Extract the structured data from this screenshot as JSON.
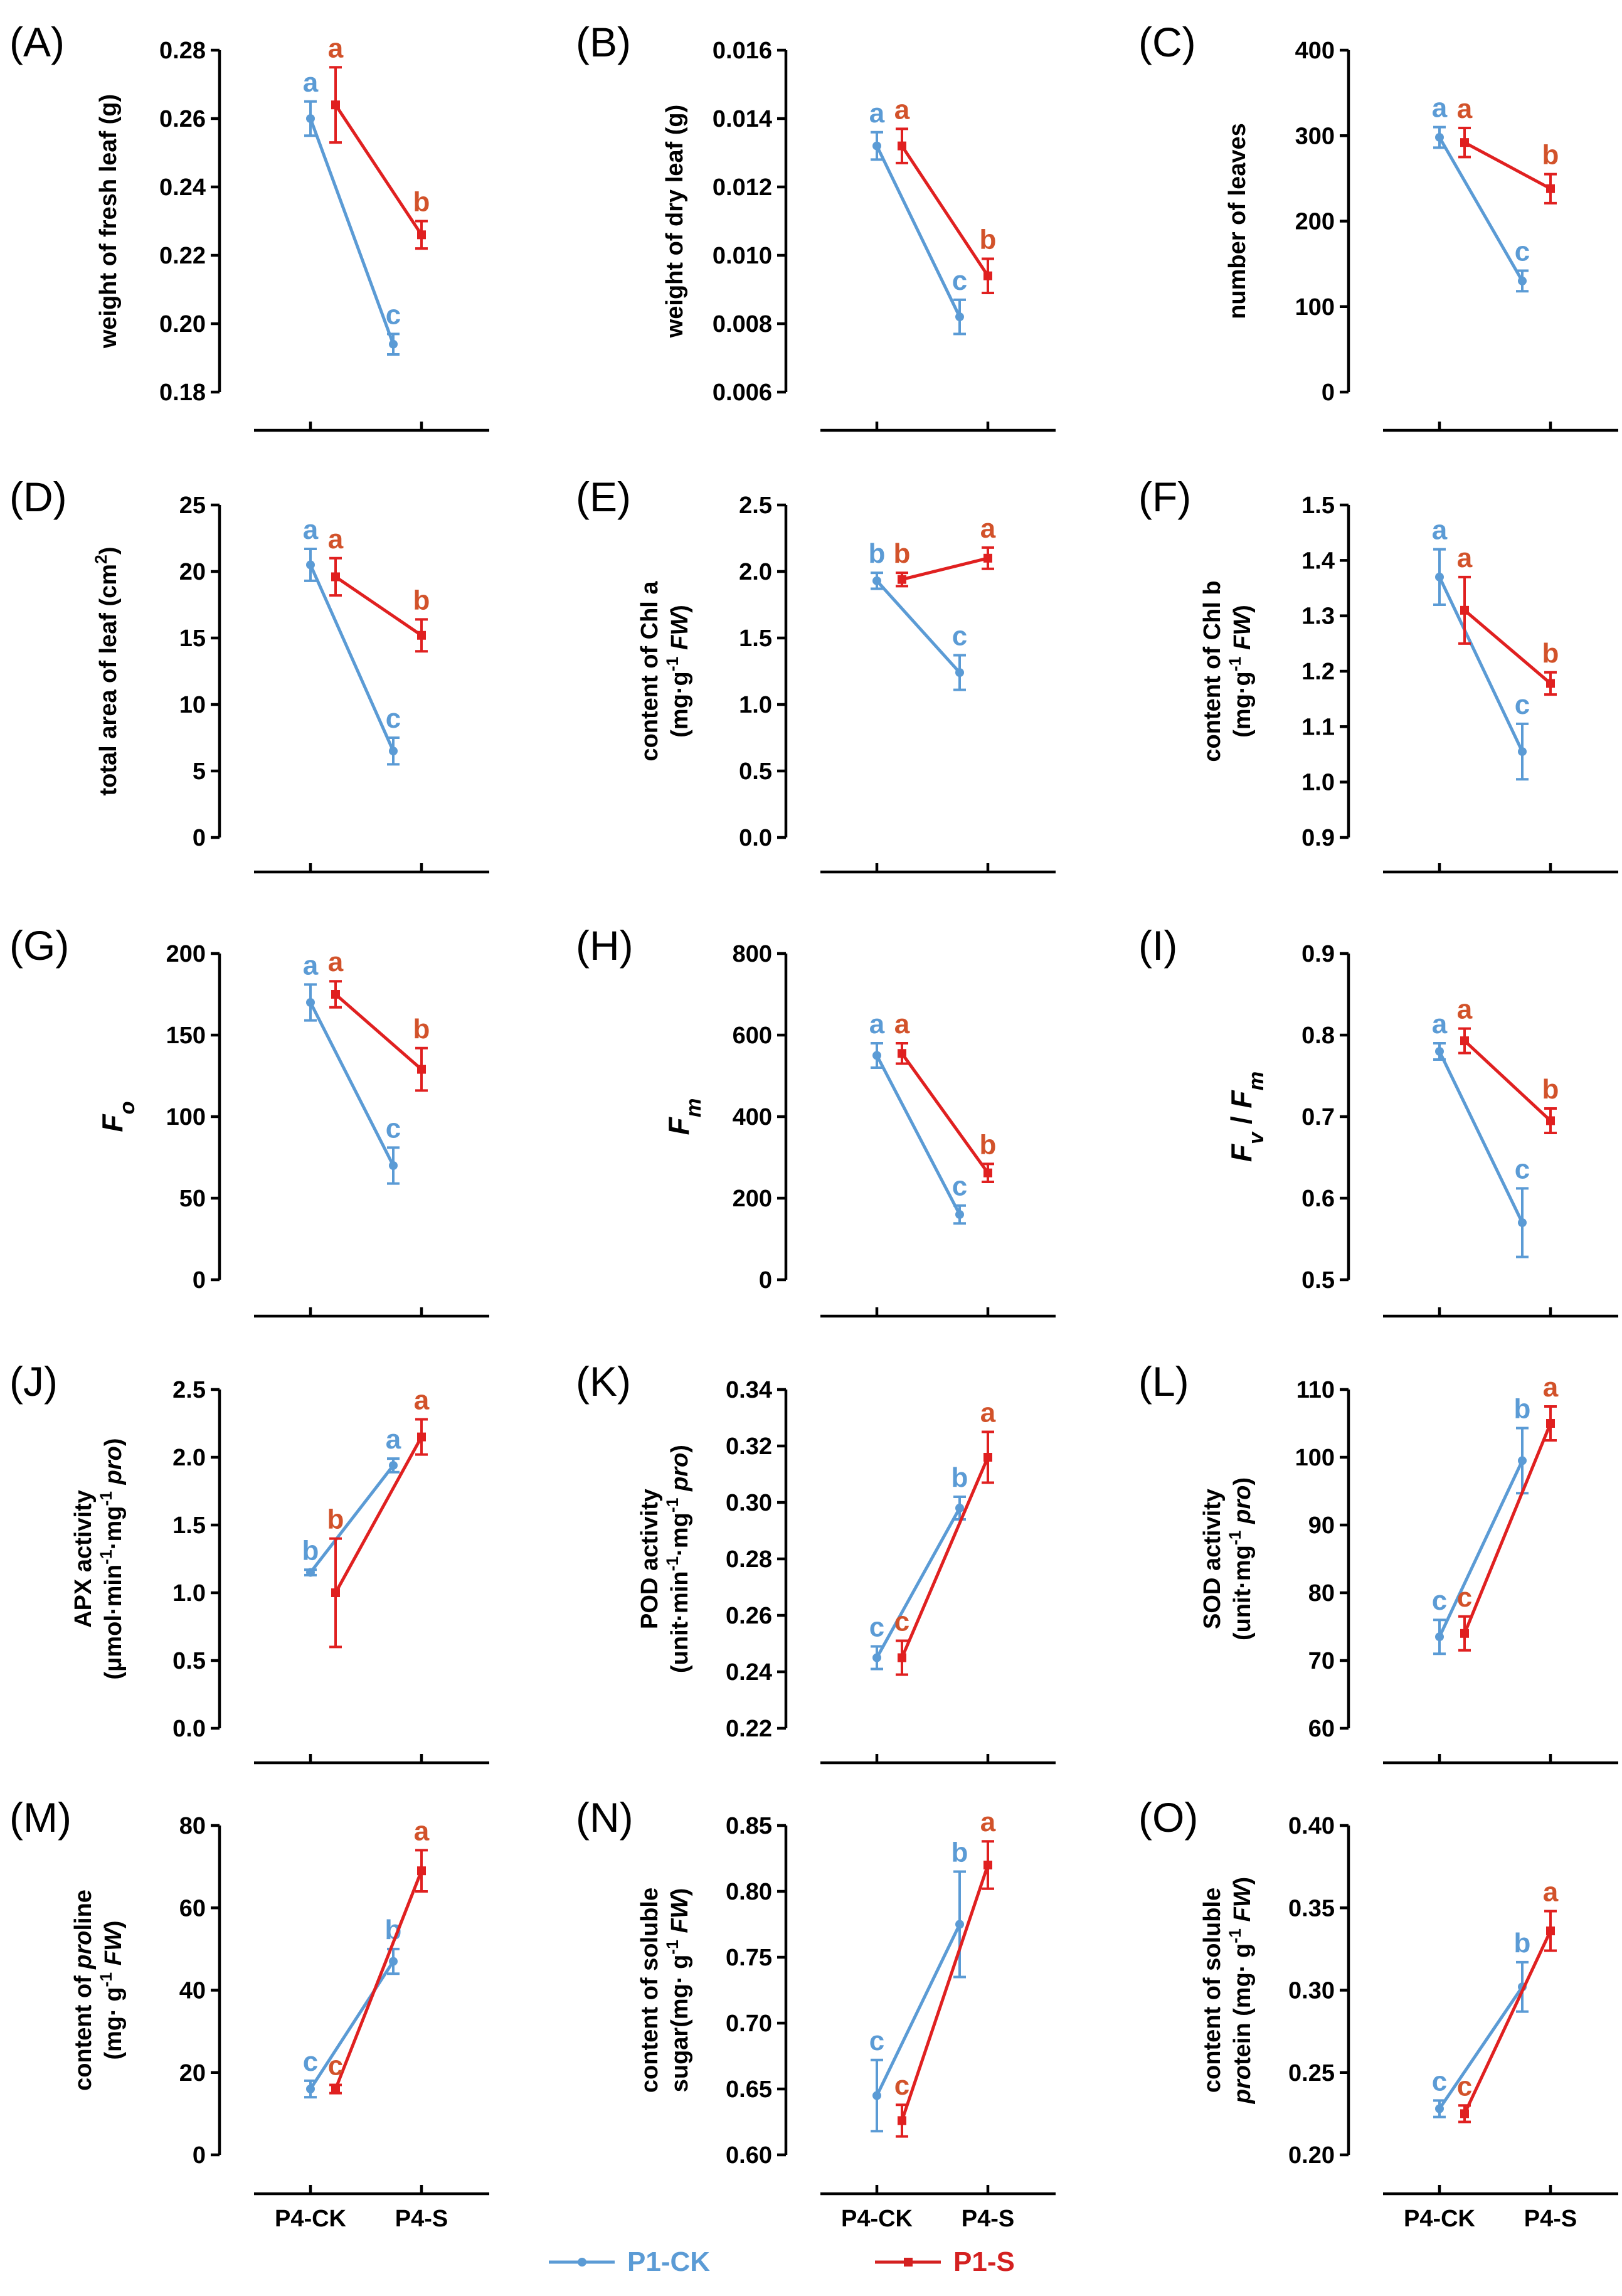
{
  "colors": {
    "P1-CK": "#5b9bd5",
    "P1-S": "#e02020",
    "sig_P1-S": "#d2522a"
  },
  "x_categories": [
    "P4-CK",
    "P4-S"
  ],
  "legend": [
    {
      "name": "P1-CK",
      "color": "#5b9bd5"
    },
    {
      "name": "P1-S",
      "color": "#d42020"
    }
  ],
  "chart_data": [
    {
      "panel": "(A)",
      "type": "line",
      "ylabel": [
        "weight of fresh leaf (g)"
      ],
      "ylim": [
        0.18,
        0.28
      ],
      "yticks": [
        "0.18",
        "0.20",
        "0.22",
        "0.24",
        "0.26",
        "0.28"
      ],
      "tick_values": [
        0.18,
        0.2,
        0.22,
        0.24,
        0.26,
        0.28
      ],
      "categories": [
        "P4-CK",
        "P4-S"
      ],
      "series": [
        {
          "name": "P1-CK",
          "values": [
            0.26,
            0.194
          ],
          "errors": [
            0.005,
            0.003
          ],
          "letters": [
            "a",
            "c"
          ]
        },
        {
          "name": "P1-S",
          "values": [
            0.264,
            0.226
          ],
          "errors": [
            0.011,
            0.004
          ],
          "letters": [
            "a",
            "b"
          ]
        }
      ]
    },
    {
      "panel": "(B)",
      "type": "line",
      "ylabel": [
        "weight of dry leaf (g)"
      ],
      "ylim": [
        0.006,
        0.016
      ],
      "yticks": [
        "0.006",
        "0.008",
        "0.010",
        "0.012",
        "0.014",
        "0.016"
      ],
      "tick_values": [
        0.006,
        0.008,
        0.01,
        0.012,
        0.014,
        0.016
      ],
      "categories": [
        "P4-CK",
        "P4-S"
      ],
      "series": [
        {
          "name": "P1-CK",
          "values": [
            0.0132,
            0.0082
          ],
          "errors": [
            0.0004,
            0.0005
          ],
          "letters": [
            "a",
            "c"
          ]
        },
        {
          "name": "P1-S",
          "values": [
            0.0132,
            0.0094
          ],
          "errors": [
            0.0005,
            0.0005
          ],
          "letters": [
            "a",
            "b"
          ]
        }
      ]
    },
    {
      "panel": "(C)",
      "type": "line",
      "ylabel": [
        "number of leaves"
      ],
      "ylim": [
        0,
        400
      ],
      "yticks": [
        "0",
        "100",
        "200",
        "300",
        "400"
      ],
      "tick_values": [
        0,
        100,
        200,
        300,
        400
      ],
      "categories": [
        "P4-CK",
        "P4-S"
      ],
      "series": [
        {
          "name": "P1-CK",
          "values": [
            298,
            130
          ],
          "errors": [
            12,
            12
          ],
          "letters": [
            "a",
            "c"
          ]
        },
        {
          "name": "P1-S",
          "values": [
            292,
            238
          ],
          "errors": [
            17,
            17
          ],
          "letters": [
            "a",
            "b"
          ]
        }
      ]
    },
    {
      "panel": "(D)",
      "type": "line",
      "ylabel": [
        "total area of leaf (cm²)"
      ],
      "ylim": [
        0,
        25
      ],
      "yticks": [
        "0",
        "5",
        "10",
        "15",
        "20",
        "25"
      ],
      "tick_values": [
        0,
        5,
        10,
        15,
        20,
        25
      ],
      "categories": [
        "P4-CK",
        "P4-S"
      ],
      "series": [
        {
          "name": "P1-CK",
          "values": [
            20.5,
            6.5
          ],
          "errors": [
            1.2,
            1.0
          ],
          "letters": [
            "a",
            "c"
          ]
        },
        {
          "name": "P1-S",
          "values": [
            19.6,
            15.2
          ],
          "errors": [
            1.4,
            1.2
          ],
          "letters": [
            "a",
            "b"
          ]
        }
      ]
    },
    {
      "panel": "(E)",
      "type": "line",
      "ylabel": [
        "content of Chl a",
        "(mg·g⁻¹ FW)"
      ],
      "ylim": [
        0,
        2.5
      ],
      "yticks": [
        "0.0",
        "0.5",
        "1.0",
        "1.5",
        "2.0",
        "2.5"
      ],
      "tick_values": [
        0,
        0.5,
        1.0,
        1.5,
        2.0,
        2.5
      ],
      "categories": [
        "P4-CK",
        "P4-S"
      ],
      "series": [
        {
          "name": "P1-CK",
          "values": [
            1.93,
            1.24
          ],
          "errors": [
            0.06,
            0.13
          ],
          "letters": [
            "b",
            "c"
          ]
        },
        {
          "name": "P1-S",
          "values": [
            1.94,
            2.1
          ],
          "errors": [
            0.05,
            0.08
          ],
          "letters": [
            "b",
            "a"
          ]
        }
      ]
    },
    {
      "panel": "(F)",
      "type": "line",
      "ylabel": [
        "content of Chl b",
        "(mg·g⁻¹ FW)"
      ],
      "ylim": [
        0.9,
        1.5
      ],
      "yticks": [
        "0.9",
        "1.0",
        "1.1",
        "1.2",
        "1.3",
        "1.4",
        "1.5"
      ],
      "tick_values": [
        0.9,
        1.0,
        1.1,
        1.2,
        1.3,
        1.4,
        1.5
      ],
      "categories": [
        "P4-CK",
        "P4-S"
      ],
      "series": [
        {
          "name": "P1-CK",
          "values": [
            1.37,
            1.055
          ],
          "errors": [
            0.05,
            0.05
          ],
          "letters": [
            "a",
            "c"
          ]
        },
        {
          "name": "P1-S",
          "values": [
            1.31,
            1.178
          ],
          "errors": [
            0.06,
            0.02
          ],
          "letters": [
            "a",
            "b"
          ]
        }
      ]
    },
    {
      "panel": "(G)",
      "type": "line",
      "ylabel": [
        "Fo"
      ],
      "ylim": [
        0,
        200
      ],
      "yticks": [
        "0",
        "50",
        "100",
        "150",
        "200"
      ],
      "tick_values": [
        0,
        50,
        100,
        150,
        200
      ],
      "categories": [
        "P4-CK",
        "P4-S"
      ],
      "series": [
        {
          "name": "P1-CK",
          "values": [
            170,
            70
          ],
          "errors": [
            11,
            11
          ],
          "letters": [
            "a",
            "c"
          ]
        },
        {
          "name": "P1-S",
          "values": [
            175,
            129
          ],
          "errors": [
            8,
            13
          ],
          "letters": [
            "a",
            "b"
          ]
        }
      ]
    },
    {
      "panel": "(H)",
      "type": "line",
      "ylabel": [
        "Fm"
      ],
      "ylim": [
        0,
        800
      ],
      "yticks": [
        "0",
        "200",
        "400",
        "600",
        "800"
      ],
      "tick_values": [
        0,
        200,
        400,
        600,
        800
      ],
      "categories": [
        "P4-CK",
        "P4-S"
      ],
      "series": [
        {
          "name": "P1-CK",
          "values": [
            550,
            160
          ],
          "errors": [
            30,
            22
          ],
          "letters": [
            "a",
            "c"
          ]
        },
        {
          "name": "P1-S",
          "values": [
            555,
            262
          ],
          "errors": [
            25,
            22
          ],
          "letters": [
            "a",
            "b"
          ]
        }
      ]
    },
    {
      "panel": "(I)",
      "type": "line",
      "ylabel": [
        "Fv / Fm"
      ],
      "ylim": [
        0.5,
        0.9
      ],
      "yticks": [
        "0.5",
        "0.6",
        "0.7",
        "0.8",
        "0.9"
      ],
      "tick_values": [
        0.5,
        0.6,
        0.7,
        0.8,
        0.9
      ],
      "categories": [
        "P4-CK",
        "P4-S"
      ],
      "series": [
        {
          "name": "P1-CK",
          "values": [
            0.78,
            0.57
          ],
          "errors": [
            0.01,
            0.042
          ],
          "letters": [
            "a",
            "c"
          ]
        },
        {
          "name": "P1-S",
          "values": [
            0.793,
            0.695
          ],
          "errors": [
            0.015,
            0.015
          ],
          "letters": [
            "a",
            "b"
          ]
        }
      ]
    },
    {
      "panel": "(J)",
      "type": "line",
      "ylabel": [
        "APX activity",
        "(μmol·min⁻¹·mg⁻¹ pro)"
      ],
      "ylim": [
        0,
        2.5
      ],
      "yticks": [
        "0.0",
        "0.5",
        "1.0",
        "1.5",
        "2.0",
        "2.5"
      ],
      "tick_values": [
        0,
        0.5,
        1.0,
        1.5,
        2.0,
        2.5
      ],
      "categories": [
        "P4-CK",
        "P4-S"
      ],
      "series": [
        {
          "name": "P1-CK",
          "values": [
            1.15,
            1.94
          ],
          "errors": [
            0.02,
            0.05
          ],
          "letters": [
            "b",
            "a"
          ]
        },
        {
          "name": "P1-S",
          "values": [
            1.0,
            2.15
          ],
          "errors": [
            0.4,
            0.13
          ],
          "letters": [
            "b",
            "a"
          ]
        }
      ]
    },
    {
      "panel": "(K)",
      "type": "line",
      "ylabel": [
        "POD activity",
        "(unit·min⁻¹·mg⁻¹ pro)"
      ],
      "ylim": [
        0.22,
        0.34
      ],
      "yticks": [
        "0.22",
        "0.24",
        "0.26",
        "0.28",
        "0.30",
        "0.32",
        "0.34"
      ],
      "tick_values": [
        0.22,
        0.24,
        0.26,
        0.28,
        0.3,
        0.32,
        0.34
      ],
      "categories": [
        "P4-CK",
        "P4-S"
      ],
      "series": [
        {
          "name": "P1-CK",
          "values": [
            0.245,
            0.298
          ],
          "errors": [
            0.004,
            0.004
          ],
          "letters": [
            "c",
            "b"
          ]
        },
        {
          "name": "P1-S",
          "values": [
            0.245,
            0.316
          ],
          "errors": [
            0.006,
            0.009
          ],
          "letters": [
            "c",
            "a"
          ]
        }
      ]
    },
    {
      "panel": "(L)",
      "type": "line",
      "ylabel": [
        "SOD activity",
        "(unit·mg⁻¹ pro)"
      ],
      "ylim": [
        60,
        110
      ],
      "yticks": [
        "60",
        "70",
        "80",
        "90",
        "100",
        "110"
      ],
      "tick_values": [
        60,
        70,
        80,
        90,
        100,
        110
      ],
      "categories": [
        "P4-CK",
        "P4-S"
      ],
      "series": [
        {
          "name": "P1-CK",
          "values": [
            73.5,
            99.5
          ],
          "errors": [
            2.5,
            4.8
          ],
          "letters": [
            "c",
            "b"
          ]
        },
        {
          "name": "P1-S",
          "values": [
            74.0,
            105.0
          ],
          "errors": [
            2.5,
            2.5
          ],
          "letters": [
            "c",
            "a"
          ]
        }
      ]
    },
    {
      "panel": "(M)",
      "type": "line",
      "ylabel": [
        "content of proline",
        "(mg· g⁻¹ FW)"
      ],
      "ylim": [
        0,
        80
      ],
      "yticks": [
        "0",
        "20",
        "40",
        "60",
        "80"
      ],
      "tick_values": [
        0,
        20,
        40,
        60,
        80
      ],
      "categories": [
        "P4-CK",
        "P4-S"
      ],
      "series": [
        {
          "name": "P1-CK",
          "values": [
            16,
            47
          ],
          "errors": [
            2,
            3
          ],
          "letters": [
            "c",
            "b"
          ]
        },
        {
          "name": "P1-S",
          "values": [
            16,
            69
          ],
          "errors": [
            1,
            5
          ],
          "letters": [
            "c",
            "a"
          ]
        }
      ]
    },
    {
      "panel": "(N)",
      "type": "line",
      "ylabel": [
        "content of soluble",
        "sugar(mg· g⁻¹ FW)"
      ],
      "ylim": [
        0.6,
        0.85
      ],
      "yticks": [
        "0.60",
        "0.65",
        "0.70",
        "0.75",
        "0.80",
        "0.85"
      ],
      "tick_values": [
        0.6,
        0.65,
        0.7,
        0.75,
        0.8,
        0.85
      ],
      "categories": [
        "P4-CK",
        "P4-S"
      ],
      "series": [
        {
          "name": "P1-CK",
          "values": [
            0.645,
            0.775
          ],
          "errors": [
            0.027,
            0.04
          ],
          "letters": [
            "c",
            "b"
          ]
        },
        {
          "name": "P1-S",
          "values": [
            0.626,
            0.82
          ],
          "errors": [
            0.012,
            0.018
          ],
          "letters": [
            "c",
            "a"
          ]
        }
      ]
    },
    {
      "panel": "(O)",
      "type": "line",
      "ylabel": [
        "content of soluble",
        "protein (mg· g⁻¹ FW)"
      ],
      "ylim": [
        0.2,
        0.4
      ],
      "yticks": [
        "0.20",
        "0.25",
        "0.30",
        "0.35",
        "0.40"
      ],
      "tick_values": [
        0.2,
        0.25,
        0.3,
        0.35,
        0.4
      ],
      "categories": [
        "P4-CK",
        "P4-S"
      ],
      "series": [
        {
          "name": "P1-CK",
          "values": [
            0.228,
            0.302
          ],
          "errors": [
            0.005,
            0.015
          ],
          "letters": [
            "c",
            "b"
          ]
        },
        {
          "name": "P1-S",
          "values": [
            0.225,
            0.336
          ],
          "errors": [
            0.005,
            0.012
          ],
          "letters": [
            "c",
            "a"
          ]
        }
      ]
    }
  ]
}
